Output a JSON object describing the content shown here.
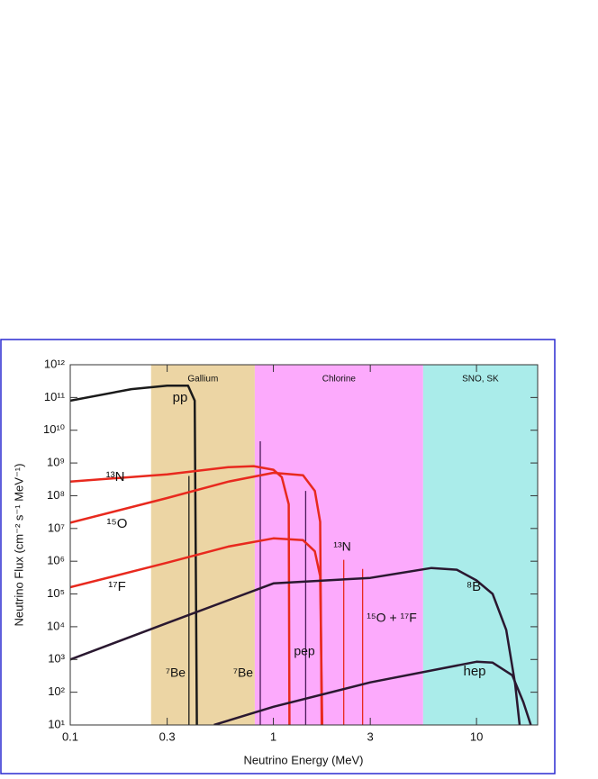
{
  "chart_data": {
    "type": "line",
    "xlabel": "Neutrino Energy (MeV)",
    "ylabel": "Neutrino Flux (cm⁻² s⁻¹ MeV⁻¹)",
    "xscale": "log",
    "yscale": "log",
    "xlim": [
      0.1,
      20
    ],
    "ylim": [
      10,
      1000000000000.0
    ],
    "xticks": [
      0.1,
      0.3,
      1,
      3,
      10
    ],
    "yticks": [
      {
        "value": 1000000000000.0,
        "label": "10¹²"
      },
      {
        "value": 100000000000.0,
        "label": "10¹¹"
      },
      {
        "value": 10000000000.0,
        "label": "10¹⁰"
      },
      {
        "value": 1000000000.0,
        "label": "10⁹"
      },
      {
        "value": 100000000.0,
        "label": "10⁸"
      },
      {
        "value": 10000000.0,
        "label": "10⁷"
      },
      {
        "value": 1000000.0,
        "label": "10⁶"
      },
      {
        "value": 100000.0,
        "label": "10⁵"
      },
      {
        "value": 10000.0,
        "label": "10⁴"
      },
      {
        "value": 1000.0,
        "label": "10³"
      },
      {
        "value": 100.0,
        "label": "10²"
      },
      {
        "value": 10,
        "label": "10¹"
      }
    ],
    "grid": false,
    "regions": [
      {
        "name": "Gallium",
        "xlim": [
          0.25,
          0.81
        ],
        "color": "#ecd5a4"
      },
      {
        "name": "Chlorine",
        "xlim": [
          0.81,
          5.46
        ],
        "color": "#fcaafc"
      },
      {
        "name": "SNO, SK",
        "xlim": [
          5.46,
          20
        ],
        "color": "#aaecea"
      }
    ],
    "series": [
      {
        "name": "pp",
        "color": "#1a1a1a",
        "x": [
          0.1,
          0.2,
          0.3,
          0.38,
          0.41,
          0.42
        ],
        "values": [
          80000000000.0,
          180000000000.0,
          230000000000.0,
          230000000000.0,
          80000000000.0,
          10
        ]
      },
      {
        "name": "¹³N",
        "color": "#e8291e",
        "x": [
          0.1,
          0.3,
          0.6,
          0.8,
          1.0,
          1.1,
          1.19,
          1.2
        ],
        "values": [
          270000000.0,
          450000000.0,
          740000000.0,
          800000000.0,
          620000000.0,
          370000000.0,
          55000000.0,
          10
        ]
      },
      {
        "name": "¹⁵O",
        "color": "#e8291e",
        "x": [
          0.1,
          0.3,
          0.6,
          1.0,
          1.4,
          1.6,
          1.7,
          1.73
        ],
        "values": [
          15000000.0,
          85000000.0,
          270000000.0,
          500000000.0,
          420000000.0,
          140000000.0,
          16000000.0,
          10
        ]
      },
      {
        "name": "¹⁷F",
        "color": "#e8291e",
        "x": [
          0.1,
          0.3,
          0.6,
          1.0,
          1.4,
          1.6,
          1.7,
          1.74
        ],
        "values": [
          160000.0,
          900000.0,
          2800000.0,
          5000000.0,
          4400000.0,
          2000000.0,
          350000.0,
          10
        ]
      },
      {
        "name": "⁸B",
        "color": "#2a1830",
        "x": [
          0.1,
          0.3,
          1,
          3,
          6,
          8,
          10,
          12,
          14,
          15.5,
          16.3
        ],
        "values": [
          1000.0,
          13000.0,
          210000.0,
          310000.0,
          620000.0,
          550000.0,
          260000.0,
          100000.0,
          8000.0,
          180,
          10
        ]
      },
      {
        "name": "hep",
        "color": "#2a1830",
        "x": [
          0.51,
          1,
          3,
          10,
          12,
          15,
          17,
          18.5
        ],
        "values": [
          10,
          36,
          200,
          850,
          800,
          330,
          50,
          10
        ]
      }
    ],
    "lines": [
      {
        "name": "⁷Be",
        "x": 0.384,
        "value": 400000000.0,
        "color": "#1a1a1a"
      },
      {
        "name": "⁷Be",
        "x": 0.862,
        "value": 4600000000.0,
        "color": "#4a1a5a"
      },
      {
        "name": "pep",
        "x": 1.442,
        "value": 140000000.0,
        "color": "#4a1a5a"
      },
      {
        "name": "¹³N",
        "x": 2.22,
        "value": 1100000.0,
        "color": "#e8291e"
      },
      {
        "name": "¹⁵O + ¹⁷F",
        "x": 2.75,
        "value": 580000.0,
        "color": "#e8291e"
      }
    ]
  }
}
